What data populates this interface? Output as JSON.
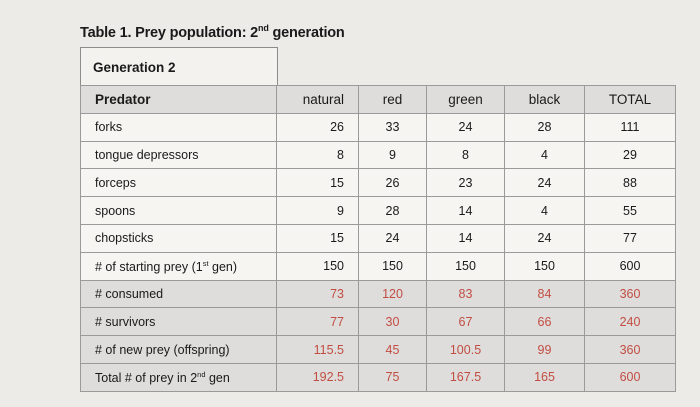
{
  "caption": {
    "prefix": "Table 1. Prey population: 2",
    "sup": "nd",
    "suffix": " generation"
  },
  "generation_label": "Generation 2",
  "headers": [
    "Predator",
    "natural",
    "red",
    "green",
    "black",
    "TOTAL"
  ],
  "rows": [
    {
      "label": "forks",
      "values": [
        "26",
        "33",
        "24",
        "28",
        "111"
      ]
    },
    {
      "label": "tongue depressors",
      "values": [
        "8",
        "9",
        "8",
        "4",
        "29"
      ]
    },
    {
      "label": "forceps",
      "values": [
        "15",
        "26",
        "23",
        "24",
        "88"
      ]
    },
    {
      "label": "spoons",
      "values": [
        "9",
        "28",
        "14",
        "4",
        "55"
      ]
    },
    {
      "label": "chopsticks",
      "values": [
        "15",
        "24",
        "14",
        "24",
        "77"
      ]
    },
    {
      "label_prefix": "# of starting prey (1",
      "label_sup": "st",
      "label_suffix": " gen)",
      "values": [
        "150",
        "150",
        "150",
        "150",
        "600"
      ]
    },
    {
      "label": "# consumed",
      "values": [
        "73",
        "120",
        "83",
        "84",
        "360"
      ]
    },
    {
      "label": "# survivors",
      "values": [
        "77",
        "30",
        "67",
        "66",
        "240"
      ]
    },
    {
      "label": "# of new prey (offspring)",
      "values": [
        "115.5",
        "45",
        "100.5",
        "99",
        "360"
      ]
    },
    {
      "label_prefix": "Total # of prey in 2",
      "label_sup": "nd",
      "label_suffix": " gen",
      "values": [
        "192.5",
        "75",
        "167.5",
        "165",
        "600"
      ]
    }
  ],
  "colors": {
    "handwritten_red": "#c24d43"
  }
}
